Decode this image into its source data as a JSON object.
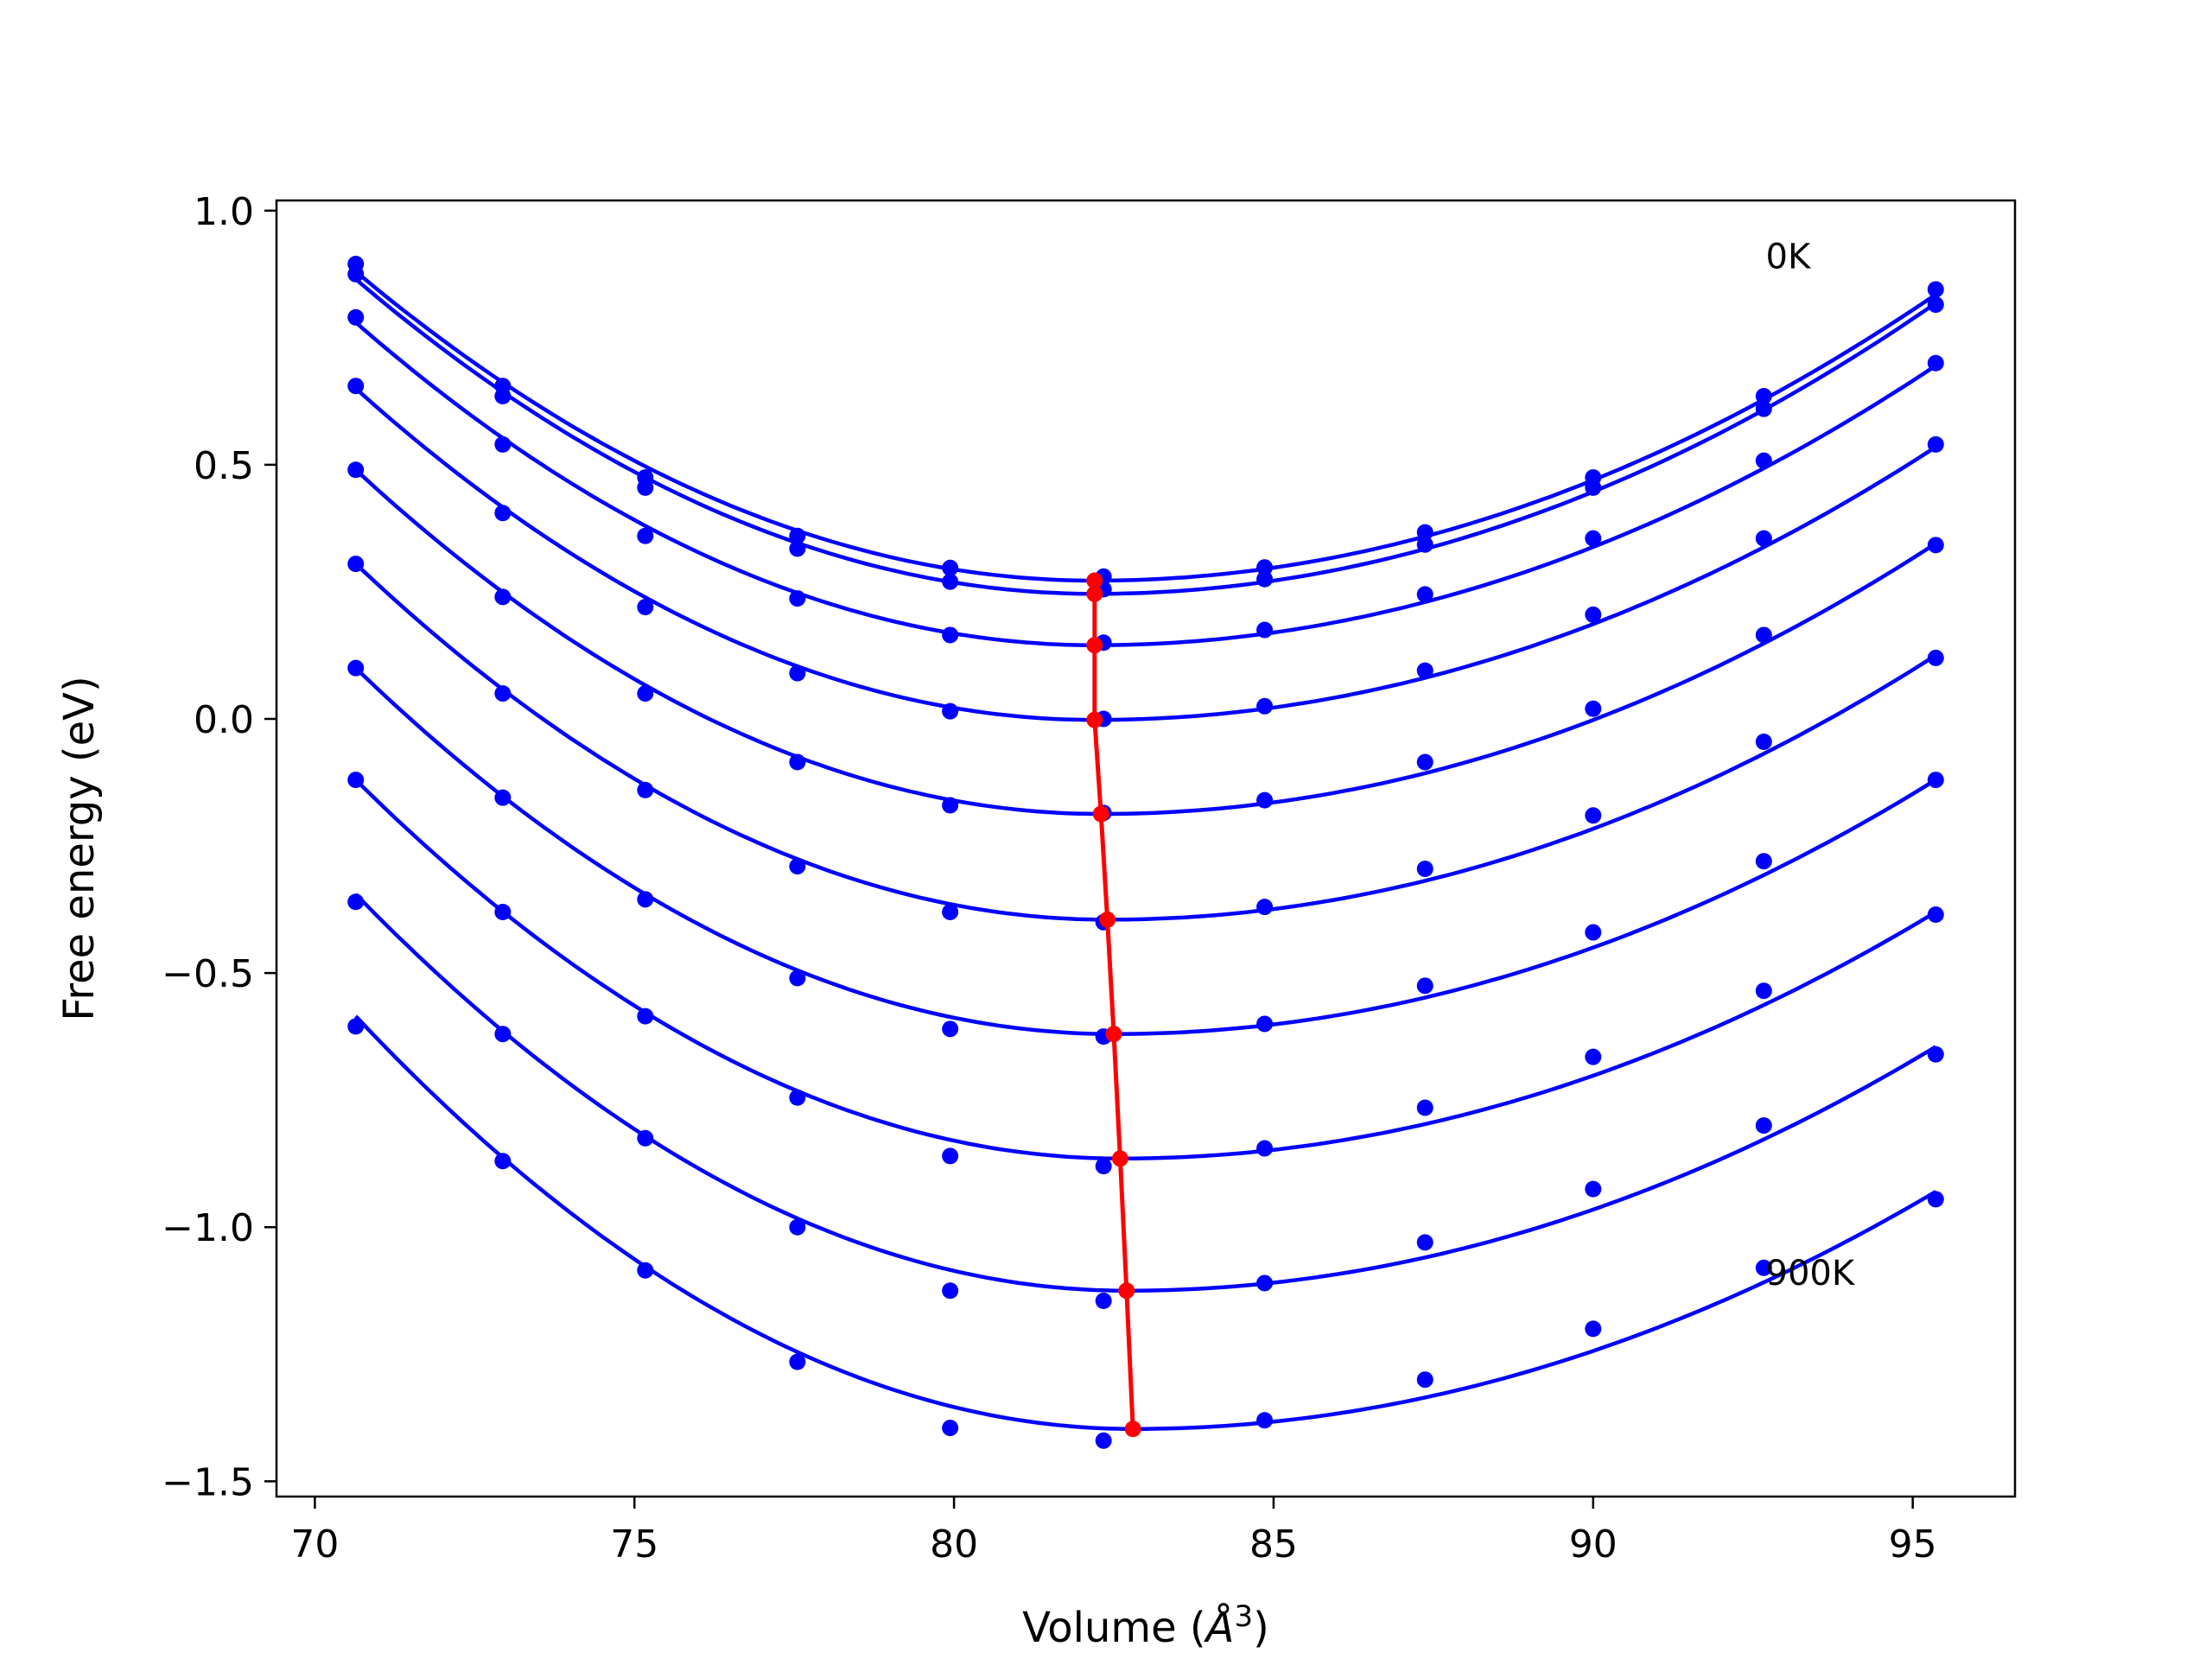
{
  "chart_data": {
    "type": "scatter",
    "title": "",
    "xlabel": "Volume (",
    "xlabel_unit": "Å",
    "xlabel_exp": "3",
    "xlabel_end": ")",
    "ylabel": "Free energy (eV)",
    "xlim": [
      69.4,
      96.6
    ],
    "ylim": [
      -1.53,
      1.02
    ],
    "xticks": [
      70,
      75,
      80,
      85,
      90,
      95
    ],
    "xtick_labels": [
      "70",
      "75",
      "80",
      "85",
      "90",
      "95"
    ],
    "yticks": [
      -1.5,
      -1.0,
      -0.5,
      0.0,
      0.5,
      1.0
    ],
    "ytick_labels": [
      "−1.5",
      "−1.0",
      "−0.5",
      "0.0",
      "0.5",
      "1.0"
    ],
    "grid": false,
    "annotations": [
      {
        "text": "0K",
        "x": 92.7,
        "y": 0.91
      },
      {
        "text": "900K",
        "x": 92.7,
        "y": -1.09
      }
    ],
    "curve_color": "#0000ff",
    "min_line_color": "#ff0000",
    "x": [
      70.64,
      72.94,
      75.17,
      77.55,
      79.94,
      82.34,
      84.86,
      87.37,
      90.0,
      92.67,
      95.36
    ],
    "series": [
      {
        "points": [
          0.895,
          0.655,
          0.475,
          0.36,
          0.297,
          0.28,
          0.298,
          0.367,
          0.475,
          0.635,
          0.845
        ],
        "fit_min": [
          82.2,
          0.272
        ],
        "fit_ends": [
          0.88,
          0.835
        ]
      },
      {
        "points": [
          0.875,
          0.635,
          0.455,
          0.335,
          0.27,
          0.255,
          0.275,
          0.343,
          0.455,
          0.61,
          0.815
        ],
        "fit_min": [
          82.2,
          0.246
        ],
        "fit_ends": [
          0.865,
          0.818
        ]
      },
      {
        "points": [
          0.79,
          0.54,
          0.36,
          0.237,
          0.165,
          0.15,
          0.175,
          0.245,
          0.355,
          0.508,
          0.7
        ],
        "fit_min": [
          82.2,
          0.145
        ],
        "fit_ends": [
          0.78,
          0.695
        ]
      },
      {
        "points": [
          0.655,
          0.405,
          0.22,
          0.09,
          0.015,
          0.0,
          0.025,
          0.095,
          0.205,
          0.355,
          0.54
        ],
        "fit_min": [
          82.2,
          -0.002
        ],
        "fit_ends": [
          0.65,
          0.535
        ]
      },
      {
        "points": [
          0.49,
          0.24,
          0.05,
          -0.085,
          -0.17,
          -0.185,
          -0.16,
          -0.085,
          0.02,
          0.165,
          0.342
        ],
        "fit_min": [
          82.3,
          -0.187
        ],
        "fit_ends": [
          0.49,
          0.345
        ]
      },
      {
        "points": [
          0.305,
          0.05,
          -0.14,
          -0.29,
          -0.38,
          -0.4,
          -0.37,
          -0.295,
          -0.19,
          -0.045,
          0.12
        ],
        "fit_min": [
          82.4,
          -0.395
        ],
        "fit_ends": [
          0.305,
          0.125
        ]
      },
      {
        "points": [
          0.1,
          -0.155,
          -0.355,
          -0.51,
          -0.61,
          -0.625,
          -0.6,
          -0.525,
          -0.42,
          -0.28,
          -0.12
        ],
        "fit_min": [
          82.5,
          -0.62
        ],
        "fit_ends": [
          0.1,
          -0.12
        ]
      },
      {
        "points": [
          -0.12,
          -0.38,
          -0.585,
          -0.745,
          -0.86,
          -0.88,
          -0.845,
          -0.765,
          -0.665,
          -0.535,
          -0.385
        ],
        "fit_min": [
          82.6,
          -0.865
        ],
        "fit_ends": [
          -0.12,
          -0.38
        ]
      },
      {
        "points": [
          -0.36,
          -0.62,
          -0.825,
          -1.0,
          -1.125,
          -1.145,
          -1.11,
          -1.03,
          -0.925,
          -0.8,
          -0.66
        ],
        "fit_min": [
          82.7,
          -1.125
        ],
        "fit_ends": [
          -0.345,
          -0.645
        ]
      },
      {
        "points": [
          -0.605,
          -0.87,
          -1.085,
          -1.265,
          -1.395,
          -1.42,
          -1.38,
          -1.3,
          -1.2,
          -1.08,
          -0.945
        ],
        "fit_min": [
          82.8,
          -1.397
        ],
        "fit_ends": [
          -0.585,
          -0.93
        ]
      }
    ]
  }
}
